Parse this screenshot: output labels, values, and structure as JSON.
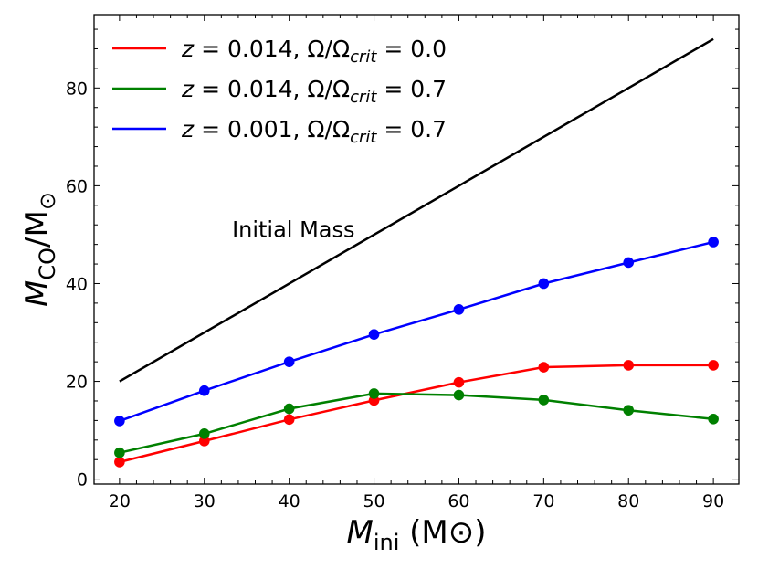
{
  "chart_data": {
    "type": "line",
    "title": "",
    "xlabel": {
      "main": "M",
      "sub": "ini",
      "unit": "(M⊙)"
    },
    "ylabel": {
      "main": "M",
      "sub": "CO",
      "slash": "/M",
      "sub2": "⊙"
    },
    "xlim": [
      17,
      93
    ],
    "ylim": [
      -1,
      95
    ],
    "x_ticks": [
      20,
      30,
      40,
      50,
      60,
      70,
      80,
      90
    ],
    "y_ticks": [
      0,
      20,
      40,
      60,
      80
    ],
    "legend_position": "top-left",
    "series": [
      {
        "name": "red",
        "label": {
          "a": "z = 0.014, Ω/Ω",
          "sub": "crit",
          "b": " = 0.0"
        },
        "color": "#ff0000",
        "markers": true,
        "in_legend": true,
        "x": [
          20,
          30,
          40,
          50,
          60,
          70,
          80,
          90
        ],
        "y": [
          3.5,
          7.8,
          12.2,
          16.1,
          19.8,
          22.9,
          23.3,
          23.3
        ]
      },
      {
        "name": "green",
        "label": {
          "a": "z = 0.014, Ω/Ω",
          "sub": "crit",
          "b": " = 0.7"
        },
        "color": "#008000",
        "markers": true,
        "in_legend": true,
        "x": [
          20,
          30,
          40,
          50,
          60,
          70,
          80,
          90
        ],
        "y": [
          5.4,
          9.3,
          14.4,
          17.5,
          17.2,
          16.2,
          14.1,
          12.3
        ]
      },
      {
        "name": "blue",
        "label": {
          "a": "z = 0.001, Ω/Ω",
          "sub": "crit",
          "b": " = 0.7"
        },
        "color": "#0000ff",
        "markers": true,
        "in_legend": true,
        "x": [
          20,
          30,
          40,
          50,
          60,
          70,
          80,
          90
        ],
        "y": [
          11.9,
          18.1,
          24.0,
          29.6,
          34.7,
          40.0,
          44.3,
          48.5
        ]
      },
      {
        "name": "initial-mass",
        "color": "#000000",
        "markers": false,
        "in_legend": false,
        "x": [
          20,
          90
        ],
        "y": [
          20,
          90
        ]
      }
    ],
    "annotations": [
      {
        "text": "Initial Mass",
        "x": 40.5,
        "y": 51
      }
    ]
  }
}
